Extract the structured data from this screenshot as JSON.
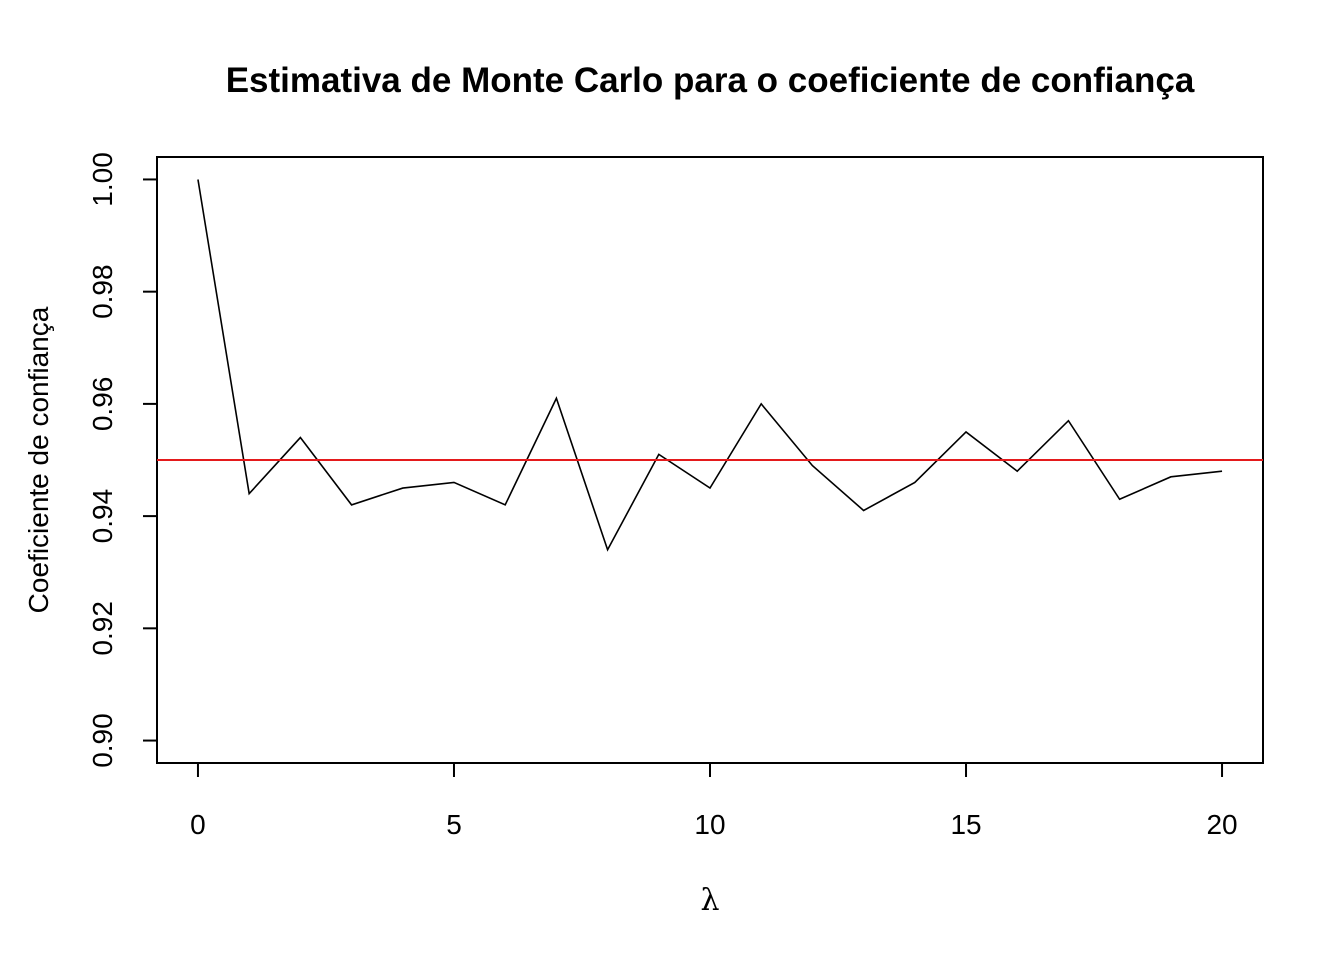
{
  "chart_data": {
    "type": "line",
    "title": "Estimativa de Monte Carlo para o coeficiente de confiança",
    "xlabel": "λ",
    "ylabel": "Coeficiente de confiança",
    "xlim": [
      -0.8,
      20.8
    ],
    "ylim": [
      0.896,
      1.004
    ],
    "xticks": [
      0,
      5,
      10,
      15,
      20
    ],
    "xtick_labels": [
      "0",
      "5",
      "10",
      "15",
      "20"
    ],
    "yticks": [
      0.9,
      0.92,
      0.94,
      0.96,
      0.98,
      1.0
    ],
    "ytick_labels": [
      "0.90",
      "0.92",
      "0.94",
      "0.96",
      "0.98",
      "1.00"
    ],
    "grid": false,
    "series": [
      {
        "color": "#000000",
        "x": [
          0,
          1,
          2,
          3,
          4,
          5,
          6,
          7,
          8,
          9,
          10,
          11,
          12,
          13,
          14,
          15,
          16,
          17,
          18,
          19,
          20
        ],
        "y": [
          1.0,
          0.944,
          0.954,
          0.942,
          0.945,
          0.946,
          0.942,
          0.961,
          0.934,
          0.951,
          0.945,
          0.96,
          0.949,
          0.941,
          0.946,
          0.955,
          0.948,
          0.957,
          0.943,
          0.947,
          0.948
        ]
      }
    ],
    "reference_line": {
      "orientation": "horizontal",
      "y": 0.95,
      "color": "#e41a1c"
    }
  }
}
